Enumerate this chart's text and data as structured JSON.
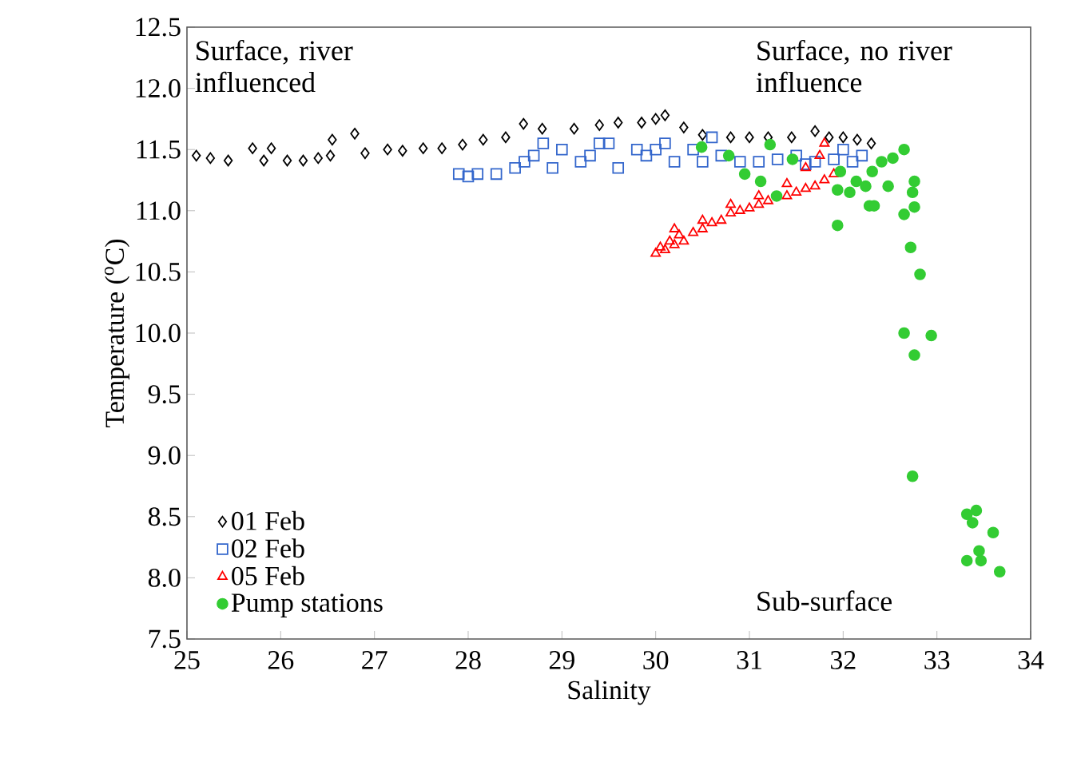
{
  "chart_data": {
    "type": "scatter",
    "xlabel": "Salinity",
    "ylabel": "Temperature ($^{o}$C)",
    "xlim": [
      25,
      34
    ],
    "xticks": [
      25,
      26,
      27,
      28,
      29,
      30,
      31,
      32,
      33,
      34
    ],
    "ylim": [
      7.5,
      12.5
    ],
    "yticks": [
      {
        "value": 7.5,
        "label": "7.5"
      },
      {
        "value": 8,
        "label": "8.0"
      },
      {
        "value": 8.5,
        "label": "8.5"
      },
      {
        "value": 9,
        "label": "9.0"
      },
      {
        "value": 9.5,
        "label": "9.5"
      },
      {
        "value": 10,
        "label": "10.0"
      },
      {
        "value": 10.5,
        "label": "10.5"
      },
      {
        "value": 11,
        "label": "11.0"
      },
      {
        "value": 11.5,
        "label": "11.5"
      },
      {
        "value": 12,
        "label": "12.0"
      },
      {
        "value": 12.5,
        "label": "12.5"
      }
    ],
    "legend": "bottom left",
    "annotations": [
      "Surface, river influenced",
      "Surface, no river influence",
      "Sub-surface"
    ],
    "series": [
      {
        "name": "01 Feb",
        "color": "#000000",
        "marker": "diamond",
        "x": [
          25.1,
          25.25,
          25.44,
          25.7,
          25.82,
          25.9,
          26.07,
          26.24,
          26.4,
          26.53,
          26.55,
          26.79,
          26.9,
          27.14,
          27.3,
          27.52,
          27.72,
          27.94,
          28.16,
          28.4,
          28.59,
          28.79,
          29.13,
          29.4,
          29.6,
          29.85,
          30.0,
          30.1,
          30.3,
          30.5,
          30.8,
          31.0,
          31.2,
          31.45,
          31.7,
          31.85,
          32.0,
          32.15,
          32.3
        ],
        "values": [
          11.45,
          11.43,
          11.41,
          11.51,
          11.41,
          11.51,
          11.41,
          11.41,
          11.43,
          11.45,
          11.58,
          11.63,
          11.47,
          11.5,
          11.49,
          11.51,
          11.51,
          11.54,
          11.58,
          11.6,
          11.71,
          11.67,
          11.67,
          11.7,
          11.72,
          11.72,
          11.75,
          11.78,
          11.68,
          11.62,
          11.6,
          11.6,
          11.6,
          11.6,
          11.65,
          11.6,
          11.6,
          11.58,
          11.55
        ]
      },
      {
        "name": "02 Feb",
        "color": "#3366cc",
        "marker": "square",
        "x": [
          27.9,
          28.0,
          28.1,
          28.3,
          28.5,
          28.6,
          28.7,
          28.9,
          29.0,
          29.2,
          29.3,
          29.5,
          29.6,
          29.8,
          29.9,
          30.1,
          30.2,
          30.4,
          30.6,
          30.7,
          30.9,
          31.1,
          31.3,
          31.5,
          31.7,
          31.9,
          32.1,
          32.2,
          28.8,
          29.4,
          30.0,
          30.5,
          31.6,
          32.0
        ],
        "values": [
          11.3,
          11.28,
          11.3,
          11.3,
          11.35,
          11.4,
          11.45,
          11.35,
          11.5,
          11.4,
          11.45,
          11.55,
          11.35,
          11.5,
          11.45,
          11.55,
          11.4,
          11.5,
          11.6,
          11.45,
          11.4,
          11.4,
          11.42,
          11.45,
          11.4,
          11.42,
          11.4,
          11.45,
          11.55,
          11.55,
          11.5,
          11.4,
          11.38,
          11.5
        ]
      },
      {
        "name": "05 Feb",
        "color": "#ff0000",
        "marker": "triangle",
        "x": [
          30.0,
          30.05,
          30.1,
          30.15,
          30.2,
          30.25,
          30.3,
          30.4,
          30.5,
          30.6,
          30.7,
          30.8,
          30.9,
          31.0,
          31.1,
          31.2,
          31.4,
          31.5,
          31.6,
          31.7,
          31.8,
          31.9,
          30.2,
          30.5,
          30.8,
          31.1,
          31.4,
          31.6,
          31.75,
          31.8
        ],
        "values": [
          10.65,
          10.7,
          10.68,
          10.75,
          10.72,
          10.8,
          10.75,
          10.82,
          10.85,
          10.9,
          10.92,
          10.98,
          11.0,
          11.02,
          11.05,
          11.08,
          11.12,
          11.15,
          11.18,
          11.2,
          11.25,
          11.3,
          10.85,
          10.92,
          11.05,
          11.12,
          11.22,
          11.35,
          11.45,
          11.55
        ]
      },
      {
        "name": "Pump stations",
        "color": "#33cc33",
        "marker": "circle",
        "x": [
          30.49,
          30.78,
          30.95,
          31.12,
          31.29,
          31.22,
          31.46,
          31.97,
          31.94,
          32.07,
          32.31,
          32.41,
          32.65,
          32.53,
          32.48,
          32.74,
          32.76,
          32.28,
          32.33,
          32.65,
          31.94,
          32.76,
          32.24,
          32.14,
          32.72,
          32.82,
          32.65,
          32.94,
          32.76,
          32.74,
          33.32,
          33.42,
          33.38,
          33.6,
          33.32,
          33.45,
          33.47,
          33.67
        ],
        "values": [
          11.52,
          11.45,
          11.3,
          11.24,
          11.12,
          11.54,
          11.42,
          11.32,
          11.17,
          11.15,
          11.32,
          11.4,
          11.5,
          11.43,
          11.2,
          11.15,
          11.24,
          11.04,
          11.04,
          10.97,
          10.88,
          11.03,
          11.2,
          11.24,
          10.7,
          10.48,
          10.0,
          9.98,
          9.82,
          8.83,
          8.52,
          8.55,
          8.45,
          8.37,
          8.14,
          8.22,
          8.14,
          8.05
        ]
      }
    ]
  }
}
